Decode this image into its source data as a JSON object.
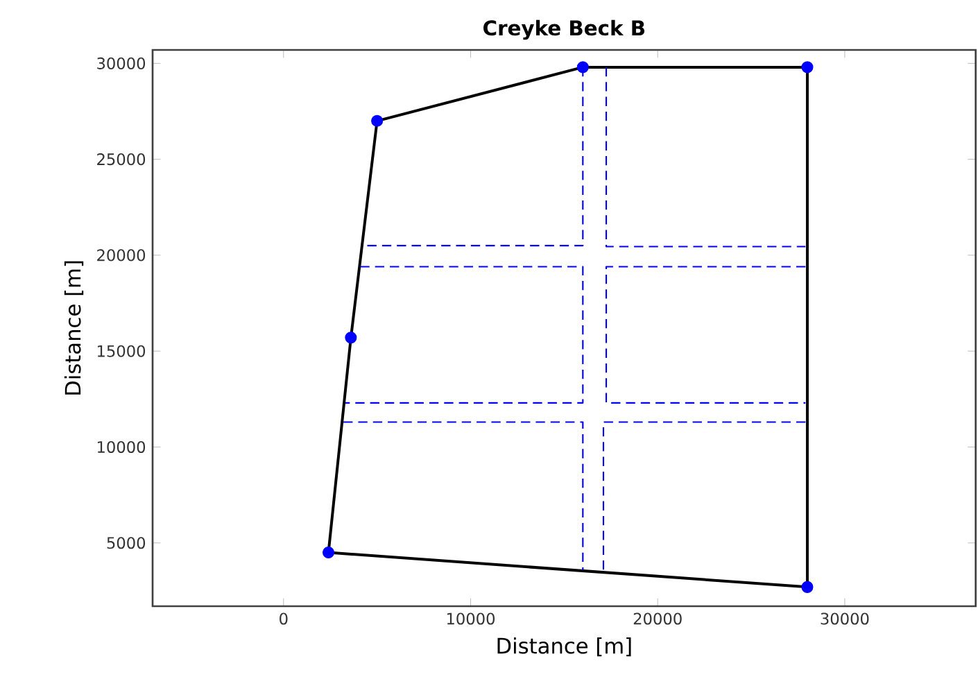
{
  "chart_data": {
    "type": "line",
    "title": "Creyke Beck B",
    "xlabel": "Distance [m]",
    "ylabel": "Distance [m]",
    "xlim": [
      -7000,
      37000
    ],
    "ylim": [
      1700,
      30700
    ],
    "xticks": [
      0,
      10000,
      20000,
      30000
    ],
    "yticks": [
      5000,
      10000,
      15000,
      20000,
      25000,
      30000
    ],
    "grid": false,
    "series": [
      {
        "color": "#000000",
        "marker": "none",
        "line_style": "solid",
        "x": [
          2400,
          3600,
          5000,
          16000,
          28000
        ],
        "values": [
          4500,
          15700,
          27000,
          29800,
          29800
        ]
      },
      {
        "color": "#000000",
        "marker": "none",
        "line_style": "solid",
        "x": [
          28000,
          28000,
          2400
        ],
        "values": [
          29800,
          2700,
          4500
        ]
      },
      {
        "color": "#0000ff",
        "marker": "none",
        "line_style": "dashed",
        "x": [
          16000,
          16000,
          4300
        ],
        "values": [
          29800,
          20500,
          20500
        ]
      },
      {
        "color": "#0000ff",
        "marker": "none",
        "line_style": "dashed",
        "x": [
          17250,
          17250,
          27900
        ],
        "values": [
          29800,
          20450,
          20450
        ]
      },
      {
        "color": "#0000ff",
        "marker": "none",
        "line_style": "dashed",
        "x": [
          4100,
          16000,
          16000,
          3300
        ],
        "values": [
          19400,
          19400,
          12300,
          12300
        ]
      },
      {
        "color": "#0000ff",
        "marker": "none",
        "line_style": "dashed",
        "x": [
          27900,
          17250,
          17250,
          27900
        ],
        "values": [
          19400,
          19400,
          12300,
          12300
        ]
      },
      {
        "color": "#0000ff",
        "marker": "none",
        "line_style": "dashed",
        "x": [
          3200,
          16000,
          16000
        ],
        "values": [
          11300,
          11300,
          3600
        ]
      },
      {
        "color": "#0000ff",
        "marker": "none",
        "line_style": "dashed",
        "x": [
          27900,
          17100,
          17100
        ],
        "values": [
          11300,
          11300,
          3500
        ]
      },
      {
        "type": "scatter",
        "color": "#0000ff",
        "marker": "circle",
        "x": [
          2400,
          3600,
          5000,
          16000,
          28000,
          28000
        ],
        "values": [
          4500,
          15700,
          27000,
          29800,
          29800,
          2700
        ]
      }
    ]
  }
}
